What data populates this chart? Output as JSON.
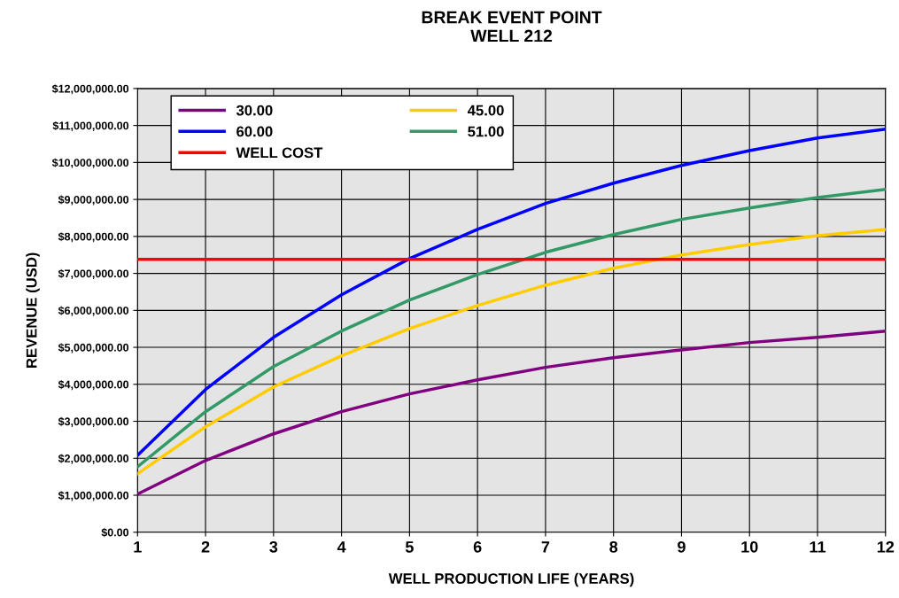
{
  "chart_data": {
    "type": "line",
    "title": "BREAK EVENT POINT\nWELL 212",
    "xlabel": "WELL PRODUCTION LIFE (YEARS)",
    "ylabel": "REVENUE (USD)",
    "x": [
      1,
      2,
      3,
      4,
      5,
      6,
      7,
      8,
      9,
      10,
      11,
      12
    ],
    "series": [
      {
        "name": "30.00",
        "color": "#800080",
        "values": [
          1030000,
          1940000,
          2660000,
          3260000,
          3740000,
          4120000,
          4460000,
          4720000,
          4930000,
          5130000,
          5270000,
          5440000
        ]
      },
      {
        "name": "45.00",
        "color": "#ffcc00",
        "values": [
          1580000,
          2850000,
          3930000,
          4770000,
          5510000,
          6130000,
          6680000,
          7140000,
          7500000,
          7780000,
          8020000,
          8190000
        ]
      },
      {
        "name": "60.00",
        "color": "#0000ff",
        "values": [
          2080000,
          3860000,
          5270000,
          6420000,
          7400000,
          8190000,
          8890000,
          9440000,
          9920000,
          10320000,
          10660000,
          10900000
        ]
      },
      {
        "name": "51.00",
        "color": "#339966",
        "values": [
          1770000,
          3260000,
          4480000,
          5440000,
          6280000,
          6970000,
          7570000,
          8050000,
          8460000,
          8770000,
          9050000,
          9270000
        ]
      }
    ],
    "ref_lines": [
      {
        "axis": "y",
        "value": 7380000,
        "label": "WELL COST",
        "color": "#ff0000"
      }
    ],
    "xlim": [
      1,
      12
    ],
    "xticks": [
      1,
      2,
      3,
      4,
      5,
      6,
      7,
      8,
      9,
      10,
      11,
      12
    ],
    "ylim": [
      0,
      12000000
    ],
    "yticks": [
      {
        "value": 0,
        "label": "$0.00"
      },
      {
        "value": 1000000,
        "label": "$1,000,000.00"
      },
      {
        "value": 2000000,
        "label": "$2,000,000.00"
      },
      {
        "value": 3000000,
        "label": "$3,000,000.00"
      },
      {
        "value": 4000000,
        "label": "$4,000,000.00"
      },
      {
        "value": 5000000,
        "label": "$5,000,000.00"
      },
      {
        "value": 6000000,
        "label": "$6,000,000.00"
      },
      {
        "value": 7000000,
        "label": "$7,000,000.00"
      },
      {
        "value": 8000000,
        "label": "$8,000,000.00"
      },
      {
        "value": 9000000,
        "label": "$9,000,000.00"
      },
      {
        "value": 10000000,
        "label": "$10,000,000.00"
      },
      {
        "value": 11000000,
        "label": "$11,000,000.00"
      },
      {
        "value": 12000000,
        "label": "$12,000,000.00"
      }
    ],
    "grid": true,
    "legend": "top left",
    "marker": "none",
    "line_style": "solid"
  }
}
